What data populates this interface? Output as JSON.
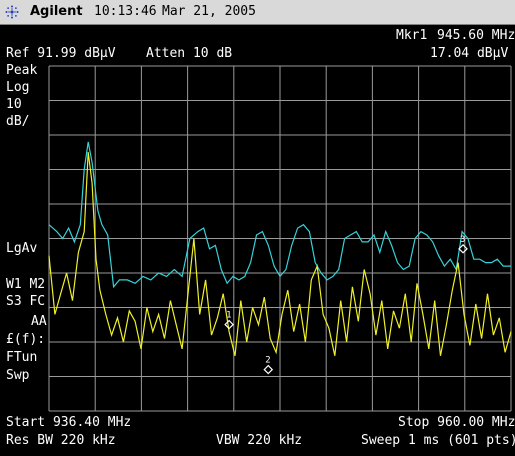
{
  "titlebar": {
    "brand": "Agilent",
    "time": "10:13:46",
    "date": "Mar 21, 2005",
    "logo_icon": "agilent-spark-icon"
  },
  "header": {
    "marker_label": "Mkr1",
    "marker_freq": "945.60 MHz",
    "ref_level": "Ref 91.99 dBμV",
    "attenuation": "Atten 10 dB",
    "marker_amplitude": "17.04 dBμV"
  },
  "left_panel": {
    "detector": "Peak",
    "scale_type": "Log",
    "scale_value": "10",
    "scale_unit": "dB/",
    "avg_label": "LgAv",
    "w1m2": "W1  M2",
    "s3fc": "S3  FC",
    "aa": "AA",
    "ff": "£(f):",
    "ftun": "FTun",
    "swp": "Swp"
  },
  "footer": {
    "start": "Start 936.40 MHz",
    "stop": "Stop 960.00 MHz",
    "res_bw": "Res BW 220 kHz",
    "vbw": "VBW 220 kHz",
    "sweep": "Sweep 1 ms (601 pts)"
  },
  "colors": {
    "background": "#000000",
    "grid": "#9a9a9a",
    "trace_cyan": "#35d2d8",
    "trace_yellow": "#f0f028",
    "marker": "#ffffff"
  },
  "chart_data": {
    "type": "line",
    "x_unit": "MHz",
    "y_unit": "dBμV",
    "xlim": [
      936.4,
      960.0
    ],
    "ylim": [
      -8.01,
      91.99
    ],
    "grid": true,
    "series": [
      {
        "color": "cyan",
        "x": [
          936.4,
          936.8,
          937.1,
          937.4,
          937.7,
          938.0,
          938.2,
          938.4,
          938.6,
          938.9,
          939.1,
          939.4,
          939.7,
          940.0,
          940.4,
          940.8,
          941.2,
          941.6,
          942.0,
          942.4,
          942.8,
          943.2,
          943.6,
          944.0,
          944.3,
          944.6,
          944.9,
          945.2,
          945.5,
          945.8,
          946.1,
          946.4,
          946.7,
          947.0,
          947.3,
          947.6,
          947.9,
          948.2,
          948.5,
          948.8,
          949.1,
          949.4,
          949.7,
          950.0,
          950.3,
          950.6,
          950.9,
          951.2,
          951.5,
          951.8,
          952.1,
          952.4,
          952.7,
          953.0,
          953.3,
          953.6,
          953.9,
          954.2,
          954.5,
          954.8,
          955.1,
          955.4,
          955.7,
          956.0,
          956.3,
          956.6,
          956.9,
          957.2,
          957.5,
          957.8,
          958.1,
          958.4,
          958.7,
          959.0,
          959.3,
          959.6,
          960.0
        ],
        "values": [
          46,
          44,
          42,
          45,
          41,
          46,
          62,
          70,
          64,
          50,
          46,
          43,
          28,
          30,
          30,
          29,
          31,
          30,
          32,
          31,
          33,
          31,
          42,
          44,
          45,
          39,
          40,
          33,
          29,
          31,
          30,
          31,
          35,
          43,
          44,
          40,
          34,
          31,
          33,
          40,
          45,
          46,
          44,
          35,
          32,
          30,
          31,
          33,
          42,
          43,
          44,
          41,
          41,
          43,
          38,
          44,
          40,
          35,
          33,
          34,
          42,
          44,
          43,
          41,
          37,
          34,
          36,
          33,
          44,
          42,
          36,
          36,
          35,
          35,
          36,
          34,
          34
        ]
      },
      {
        "color": "yellow",
        "x": [
          936.4,
          936.7,
          937.0,
          937.3,
          937.6,
          937.9,
          938.2,
          938.4,
          938.6,
          938.8,
          939.0,
          939.3,
          939.6,
          939.9,
          940.2,
          940.5,
          940.8,
          941.1,
          941.4,
          941.7,
          942.0,
          942.3,
          942.6,
          942.9,
          943.2,
          943.5,
          943.8,
          944.1,
          944.4,
          944.7,
          945.0,
          945.3,
          945.6,
          945.9,
          946.2,
          946.5,
          946.8,
          947.1,
          947.4,
          947.7,
          948.0,
          948.3,
          948.6,
          948.9,
          949.2,
          949.5,
          949.8,
          950.1,
          950.4,
          950.7,
          951.0,
          951.3,
          951.6,
          951.9,
          952.2,
          952.5,
          952.8,
          953.1,
          953.4,
          953.7,
          954.0,
          954.3,
          954.6,
          954.9,
          955.2,
          955.5,
          955.8,
          956.1,
          956.4,
          956.7,
          957.0,
          957.3,
          957.6,
          957.9,
          958.2,
          958.5,
          958.8,
          959.1,
          959.4,
          959.7,
          960.0
        ],
        "values": [
          37,
          20,
          26,
          32,
          24,
          38,
          44,
          67,
          58,
          36,
          27,
          20,
          14,
          19,
          12,
          21,
          18,
          10,
          22,
          15,
          20,
          13,
          24,
          17,
          10,
          26,
          42,
          20,
          30,
          14,
          19,
          26,
          15,
          8,
          24,
          12,
          22,
          17,
          25,
          13,
          9,
          20,
          27,
          15,
          23,
          12,
          30,
          34,
          20,
          16,
          8,
          24,
          12,
          28,
          18,
          33,
          26,
          14,
          24,
          10,
          21,
          16,
          26,
          12,
          29,
          20,
          10,
          24,
          8,
          17,
          27,
          35,
          20,
          11,
          23,
          13,
          26,
          14,
          19,
          9,
          15
        ]
      }
    ],
    "markers": [
      {
        "label": "1",
        "x": 945.6,
        "y": 17.04
      },
      {
        "label": "2",
        "x": 947.6,
        "y": 4
      },
      {
        "label": "3",
        "x": 957.55,
        "y": 39
      }
    ]
  }
}
